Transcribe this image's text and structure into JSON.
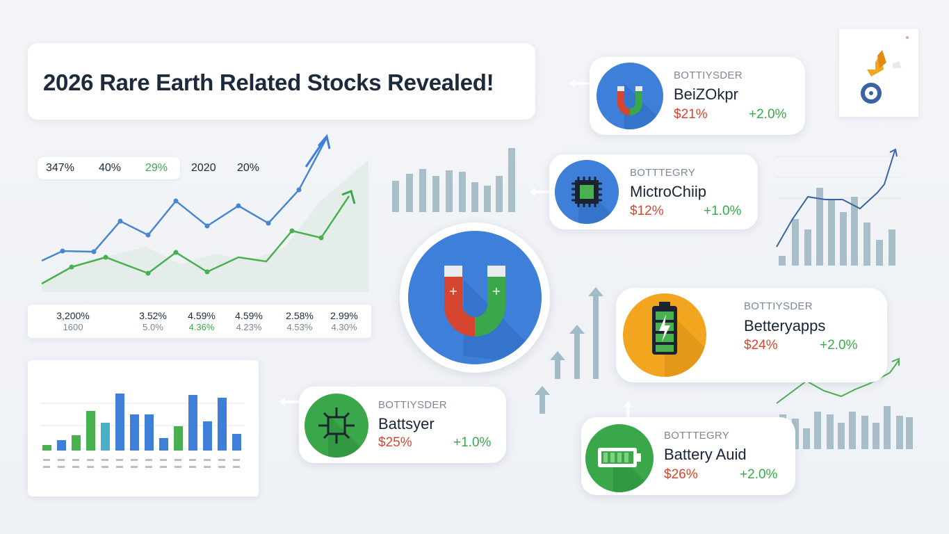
{
  "title": "2026 Rare Earth Related Stocks Revealed!",
  "summary_pill": [
    {
      "text": "347%",
      "color": "default"
    },
    {
      "text": "40%",
      "color": "default"
    },
    {
      "text": "29%",
      "color": "green"
    }
  ],
  "summary_free": [
    "2020",
    "20%"
  ],
  "stats": [
    {
      "value": "3,200%",
      "sub": "1600"
    },
    {
      "value": "3.52%",
      "sub": "5.0%"
    },
    {
      "value": "4.59%",
      "sub": "4.36%"
    },
    {
      "value": "4.59%",
      "sub": "4.23%"
    },
    {
      "value": "2.58%",
      "sub": "4.53%"
    },
    {
      "value": "2.99%",
      "sub": "4.30%"
    }
  ],
  "stocks": [
    {
      "category": "BOTTIYSDER",
      "name": "BeiZOkpr",
      "price": "$21%",
      "change": "+2.0%",
      "icon": "magnet-icon"
    },
    {
      "category": "BOTTTEGRY",
      "name": "MictroChiip",
      "price": "$12%",
      "change": "+1.0%",
      "icon": "microchip-icon"
    },
    {
      "category": "BOTTIYSDER",
      "name": "Betteryapps",
      "price": "$24%",
      "change": "+2.0%",
      "icon": "battery-icon"
    },
    {
      "category": "BOTTIYSDER",
      "name": "Battsyer",
      "price": "$25%",
      "change": "+1.0%",
      "icon": "circuit-icon"
    },
    {
      "category": "BOTTTEGRY",
      "name": "Battery Auid",
      "price": "$26%",
      "change": "+2.0%",
      "icon": "battery-horizontal-icon"
    }
  ],
  "center_icon": "magnet-icon",
  "colors": {
    "blue": "#3d7fd9",
    "green": "#3aa84a",
    "red": "#d6452f",
    "orange": "#f2a51f",
    "bar_gray": "#a8bfca"
  },
  "line_chart": {
    "type": "line",
    "series": [
      {
        "color": "#4a86cf",
        "trend": "rising"
      },
      {
        "color": "#49b04f",
        "trend": "rising"
      }
    ]
  }
}
